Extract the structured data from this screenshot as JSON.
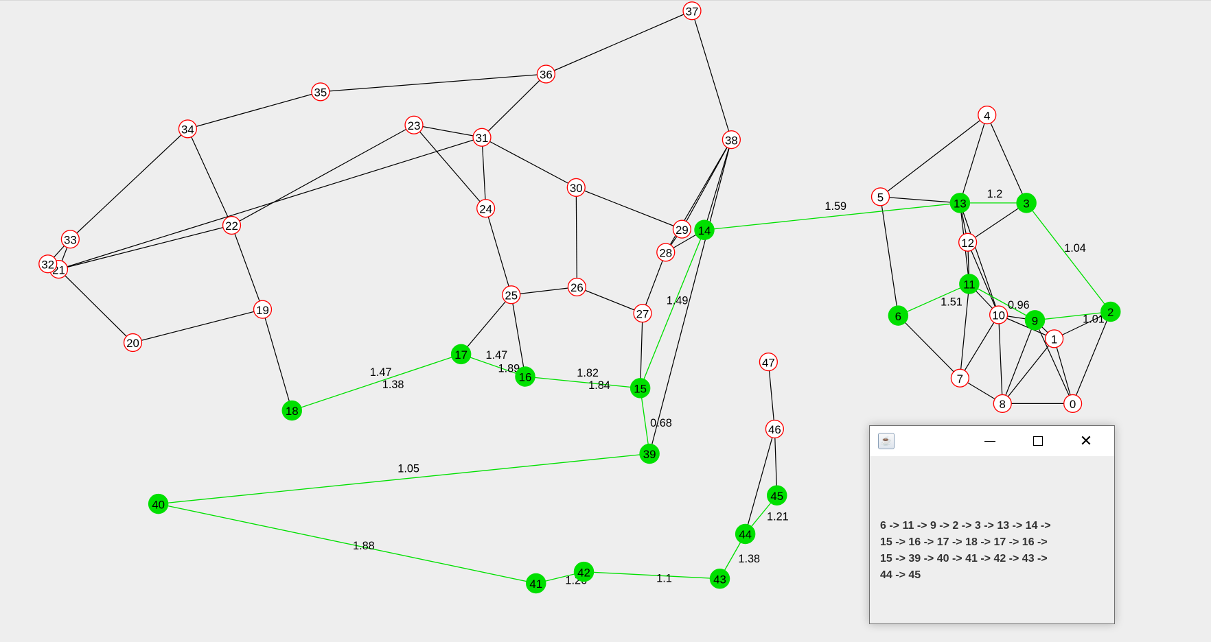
{
  "graph": {
    "node_fill": "#ffffff",
    "node_stroke": "#ff0000",
    "highlight_color": "#00e000",
    "edge_color": "#000000",
    "highlighted_nodes": [
      6,
      11,
      9,
      2,
      3,
      13,
      14,
      15,
      16,
      17,
      18,
      39,
      40,
      41,
      42,
      43,
      44,
      45
    ],
    "nodes": [
      "0",
      "1",
      "2",
      "3",
      "4",
      "5",
      "6",
      "7",
      "8",
      "9",
      "10",
      "11",
      "12",
      "13",
      "14",
      "15",
      "16",
      "17",
      "18",
      "19",
      "20",
      "21",
      "22",
      "23",
      "24",
      "25",
      "26",
      "27",
      "28",
      "29",
      "30",
      "31",
      "32",
      "33",
      "34",
      "35",
      "36",
      "37",
      "38",
      "39",
      "40",
      "41",
      "42",
      "43",
      "44",
      "45",
      "46",
      "47"
    ],
    "edges": [
      [
        4,
        5
      ],
      [
        4,
        13
      ],
      [
        4,
        3
      ],
      [
        5,
        13
      ],
      [
        5,
        6
      ],
      [
        13,
        12
      ],
      [
        13,
        11
      ],
      [
        13,
        10
      ],
      [
        3,
        12
      ],
      [
        12,
        11
      ],
      [
        12,
        10
      ],
      [
        11,
        7
      ],
      [
        11,
        10
      ],
      [
        6,
        7
      ],
      [
        10,
        9
      ],
      [
        10,
        1
      ],
      [
        10,
        8
      ],
      [
        10,
        7
      ],
      [
        9,
        8
      ],
      [
        9,
        1
      ],
      [
        9,
        0
      ],
      [
        1,
        2
      ],
      [
        1,
        8
      ],
      [
        1,
        0
      ],
      [
        2,
        0
      ],
      [
        7,
        8
      ],
      [
        8,
        0
      ],
      [
        37,
        36
      ],
      [
        37,
        38
      ],
      [
        36,
        35
      ],
      [
        36,
        31
      ],
      [
        35,
        34
      ],
      [
        34,
        33
      ],
      [
        34,
        22
      ],
      [
        23,
        31
      ],
      [
        23,
        24
      ],
      [
        23,
        22
      ],
      [
        31,
        24
      ],
      [
        31,
        30
      ],
      [
        31,
        21
      ],
      [
        22,
        21
      ],
      [
        22,
        19
      ],
      [
        33,
        21
      ],
      [
        32,
        33
      ],
      [
        21,
        20
      ],
      [
        20,
        19
      ],
      [
        19,
        18
      ],
      [
        24,
        25
      ],
      [
        25,
        26
      ],
      [
        25,
        17
      ],
      [
        25,
        16
      ],
      [
        26,
        30
      ],
      [
        26,
        27
      ],
      [
        30,
        29
      ],
      [
        29,
        28
      ],
      [
        28,
        27
      ],
      [
        38,
        29
      ],
      [
        38,
        28
      ],
      [
        38,
        14
      ],
      [
        38,
        39
      ],
      [
        14,
        28
      ],
      [
        27,
        15
      ],
      [
        44,
        46
      ],
      [
        45,
        46
      ],
      [
        46,
        47
      ]
    ],
    "path_edges": [
      {
        "from": 6,
        "to": 11,
        "labels": [
          "1.51"
        ]
      },
      {
        "from": 11,
        "to": 9,
        "labels": [
          "0.96"
        ]
      },
      {
        "from": 9,
        "to": 2,
        "labels": [
          "1.01"
        ]
      },
      {
        "from": 2,
        "to": 3,
        "labels": [
          "1.04"
        ]
      },
      {
        "from": 3,
        "to": 13,
        "labels": [
          "1.2"
        ]
      },
      {
        "from": 13,
        "to": 14,
        "labels": [
          "1.59"
        ]
      },
      {
        "from": 14,
        "to": 15,
        "labels": [
          "1.49"
        ]
      },
      {
        "from": 15,
        "to": 16,
        "labels": [
          "1.82",
          "1.84"
        ]
      },
      {
        "from": 16,
        "to": 17,
        "labels": [
          "1.47",
          "1.89"
        ]
      },
      {
        "from": 17,
        "to": 18,
        "labels": [
          "1.47",
          "1.38"
        ]
      },
      {
        "from": 15,
        "to": 39,
        "labels": [
          "0.68"
        ]
      },
      {
        "from": 39,
        "to": 40,
        "labels": [
          "1.05"
        ]
      },
      {
        "from": 40,
        "to": 41,
        "labels": [
          "1.88"
        ]
      },
      {
        "from": 41,
        "to": 42,
        "labels": [
          "1.26"
        ]
      },
      {
        "from": 42,
        "to": 43,
        "labels": [
          "1.1"
        ]
      },
      {
        "from": 43,
        "to": 44,
        "labels": [
          "1.38"
        ]
      },
      {
        "from": 44,
        "to": 45,
        "labels": [
          "1.21"
        ]
      }
    ]
  },
  "popup": {
    "icon": "java-icon",
    "path_lines": [
      "6 -> 11 -> 9 -> 2 -> 3 -> 13 -> 14 ->",
      "15 -> 16 -> 17 -> 18 -> 17 -> 16 ->",
      "15 -> 39 -> 40 -> 41 -> 42 -> 43 ->",
      "44 -> 45"
    ]
  }
}
